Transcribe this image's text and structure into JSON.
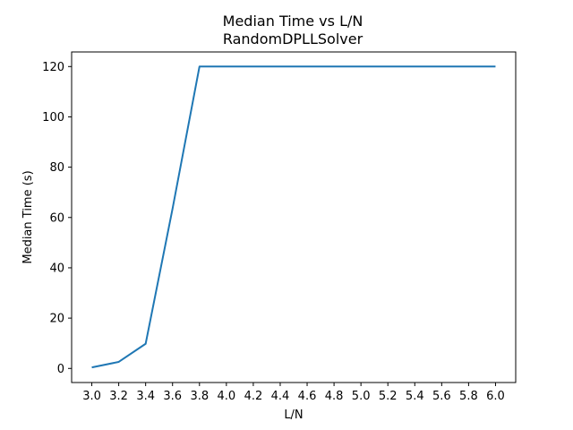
{
  "chart_data": {
    "type": "line",
    "title": "Median Time vs L/N",
    "subtitle": "RandomDPLLSolver",
    "xlabel": "L/N",
    "ylabel": "Median Time (s)",
    "x": [
      3.0,
      3.2,
      3.4,
      3.6,
      3.8,
      4.0,
      4.2,
      4.4,
      4.6,
      4.8,
      5.0,
      5.2,
      5.4,
      5.6,
      5.8,
      6.0
    ],
    "series": [
      {
        "values": [
          0.4,
          2.6,
          9.8,
          63.5,
          120,
          120,
          120,
          120,
          120,
          120,
          120,
          120,
          120,
          120,
          120,
          120
        ],
        "color": "#1f77b4"
      }
    ],
    "xticks": [
      "3.0",
      "3.2",
      "3.4",
      "3.6",
      "3.8",
      "4.0",
      "4.2",
      "4.4",
      "4.6",
      "4.8",
      "5.0",
      "5.2",
      "5.4",
      "5.6",
      "5.8",
      "6.0"
    ],
    "yticks": [
      "0",
      "20",
      "40",
      "60",
      "80",
      "100",
      "120"
    ],
    "xlim": [
      2.85,
      6.15
    ],
    "ylim": [
      -5.6,
      125.8
    ],
    "grid": false,
    "legend": "none"
  }
}
